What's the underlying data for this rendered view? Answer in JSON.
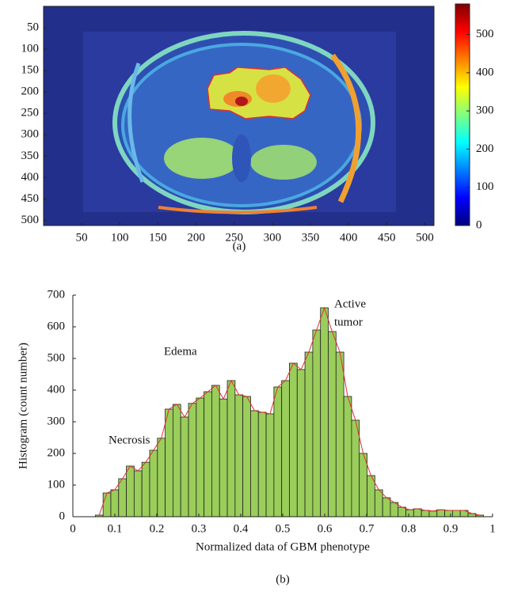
{
  "chart_data": [
    {
      "type": "image",
      "caption": "(a)",
      "xlim": [
        0,
        512
      ],
      "xticks": [
        50,
        100,
        150,
        200,
        250,
        300,
        350,
        400,
        450,
        500
      ],
      "ylim": [
        512,
        0
      ],
      "yticks": [
        50,
        100,
        150,
        200,
        250,
        300,
        350,
        400,
        450,
        500
      ],
      "colormap": "jet",
      "colorbar": {
        "lim": [
          0,
          580
        ],
        "ticks": [
          0,
          100,
          200,
          300,
          400,
          500
        ]
      }
    },
    {
      "type": "histogram",
      "caption": "(b)",
      "xlabel": "Normalized data of GBM phenotype",
      "ylabel": "Histogram (count number)",
      "bins": [
        0.0535,
        0.072,
        0.0905,
        0.109,
        0.1275,
        0.146,
        0.1645,
        0.183,
        0.2015,
        0.22,
        0.2385,
        0.257,
        0.2755,
        0.294,
        0.3125,
        0.331,
        0.3495,
        0.368,
        0.3865,
        0.405,
        0.4235,
        0.442,
        0.4605,
        0.479,
        0.4975,
        0.516,
        0.5345,
        0.553,
        0.5715,
        0.59,
        0.6085,
        0.627,
        0.6455,
        0.664,
        0.6825,
        0.701,
        0.7195,
        0.738,
        0.7565,
        0.775,
        0.7935,
        0.812,
        0.8305,
        0.849,
        0.8675,
        0.886,
        0.9045,
        0.923,
        0.9415,
        0.96,
        0.9785
      ],
      "values": [
        5,
        75,
        85,
        120,
        160,
        145,
        172,
        210,
        248,
        340,
        355,
        315,
        358,
        375,
        395,
        415,
        372,
        430,
        385,
        380,
        335,
        330,
        325,
        410,
        430,
        485,
        465,
        520,
        590,
        660,
        585,
        520,
        380,
        305,
        200,
        130,
        85,
        60,
        45,
        30,
        22,
        25,
        20,
        18,
        22,
        20,
        20,
        20,
        10,
        5
      ],
      "color": "#9acd5a",
      "line_color": "#e03030",
      "xlim": [
        0,
        1
      ],
      "xticks": [
        0,
        0.1,
        0.2,
        0.3,
        0.4,
        0.5,
        0.6,
        0.7,
        0.8,
        0.9,
        1
      ],
      "ylim": [
        0,
        700
      ],
      "yticks": [
        0,
        100,
        200,
        300,
        400,
        500,
        600,
        700
      ],
      "annotations": [
        "Necrosis",
        "Edema",
        "Active",
        "tumor"
      ]
    }
  ]
}
